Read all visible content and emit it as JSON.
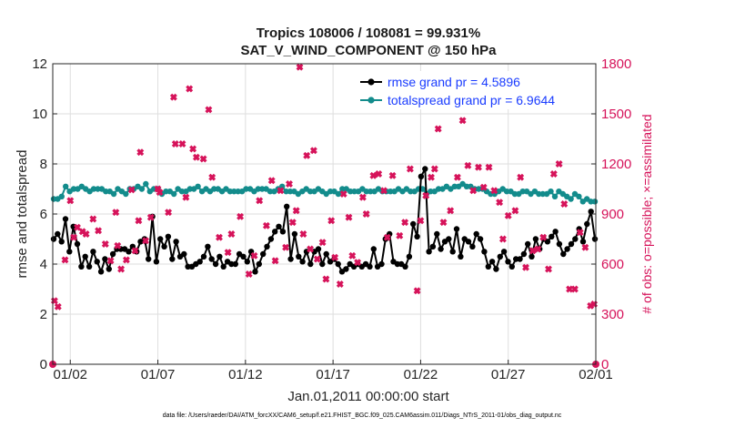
{
  "chart_data": {
    "type": "line",
    "title_line1": "Tropics 108006 / 108081 = 99.931%",
    "title_line2": "SAT_V_WIND_COMPONENT @ 150 hPa",
    "xlabel": "Jan.01,2011 00:00:00 start",
    "ylabel_left": "rmse and totalspread",
    "ylabel_right": "# of obs: o=possible; ×=assimilated",
    "footnote": "data file: /Users/raeder/DAI/ATM_forcXX/CAM6_setup/f.e21.FHIST_BGC.f09_025.CAM6assim.011/Diags_NTrS_2011-01/obs_diag_output.nc",
    "xlim": [
      0,
      31
    ],
    "ylim_left": [
      0,
      12
    ],
    "ylim_right": [
      0,
      1800
    ],
    "left_ticks": [
      0,
      2,
      4,
      6,
      8,
      10,
      12
    ],
    "left_tick_labels": [
      "0",
      "2",
      "4",
      "6",
      "8",
      "10",
      "12"
    ],
    "right_ticks": [
      0,
      300,
      600,
      900,
      1200,
      1500,
      1800
    ],
    "right_tick_labels": [
      "0",
      "300",
      "600",
      "900",
      "1200",
      "1500",
      "1800"
    ],
    "x_ticks": [
      1,
      6,
      11,
      16,
      21,
      26,
      31
    ],
    "x_tick_labels": [
      "01/02",
      "01/07",
      "01/12",
      "01/17",
      "01/22",
      "01/27",
      "02/01"
    ],
    "colors": {
      "rmse": "#000000",
      "spread": "#138c8c",
      "obs": "#d6135a",
      "legend_text": "#1a3cff"
    },
    "legend": [
      {
        "name": "rmse",
        "label": "rmse grand pr = 4.5896"
      },
      {
        "name": "spread",
        "label": "totalspread grand pr = 6.9644"
      }
    ],
    "rmse": [
      5.0,
      5.2,
      4.9,
      5.8,
      4.5,
      5.5,
      4.8,
      3.9,
      4.3,
      3.9,
      4.5,
      4.1,
      3.7,
      4.2,
      3.8,
      4.4,
      4.6,
      4.6,
      4.6,
      4.5,
      4.7,
      4.5,
      4.9,
      5.0,
      4.2,
      5.9,
      4.1,
      5.0,
      4.7,
      5.1,
      4.2,
      4.9,
      4.3,
      4.4,
      3.9,
      3.9,
      4.0,
      4.1,
      4.3,
      4.7,
      4.2,
      4.0,
      4.3,
      3.9,
      4.1,
      4.0,
      4.0,
      4.4,
      4.3,
      4.1,
      4.5,
      3.7,
      4.0,
      4.4,
      4.7,
      5.0,
      5.3,
      5.5,
      5.3,
      6.3,
      4.2,
      5.2,
      4.3,
      4.1,
      4.5,
      4.0,
      4.5,
      4.6,
      4.0,
      4.4,
      4.1,
      4.2,
      4.0,
      3.7,
      3.8,
      4.0,
      3.9,
      4.0,
      3.9,
      4.0,
      3.9,
      4.6,
      3.9,
      4.0,
      5.0,
      5.2,
      4.1,
      4.0,
      4.0,
      3.9,
      4.3,
      5.6,
      5.1,
      7.5,
      7.8,
      4.5,
      4.7,
      5.2,
      4.6,
      4.9,
      5.0,
      4.5,
      5.4,
      4.3,
      5.0,
      4.9,
      4.7,
      5.2,
      5.0,
      4.5,
      3.9,
      4.1,
      3.8,
      4.3,
      4.5,
      4.1,
      3.9,
      4.2,
      4.2,
      4.4,
      4.8,
      4.3,
      5.0,
      4.6,
      5.0,
      4.9,
      5.1,
      5.3,
      4.8,
      4.4,
      4.6,
      4.8,
      5.0,
      5.4,
      4.9,
      5.6,
      6.1,
      5.0
    ],
    "spread": [
      6.6,
      6.6,
      6.7,
      7.1,
      6.9,
      7.0,
      7.0,
      7.1,
      7.0,
      6.9,
      7.0,
      7.0,
      7.0,
      6.9,
      6.9,
      6.8,
      7.0,
      6.9,
      6.8,
      7.0,
      7.0,
      7.1,
      7.0,
      7.2,
      6.9,
      7.0,
      7.0,
      6.8,
      6.9,
      6.9,
      6.8,
      7.0,
      6.9,
      6.9,
      7.0,
      7.0,
      7.1,
      6.9,
      7.0,
      6.9,
      7.0,
      7.0,
      6.9,
      7.0,
      6.9,
      6.9,
      6.9,
      6.9,
      7.0,
      7.0,
      6.9,
      7.0,
      7.0,
      7.0,
      6.9,
      6.9,
      7.0,
      7.1,
      6.9,
      6.9,
      6.9,
      6.8,
      6.9,
      7.0,
      6.9,
      6.9,
      7.0,
      6.9,
      6.8,
      6.9,
      6.9,
      6.8,
      7.0,
      7.0,
      6.9,
      6.9,
      6.9,
      7.0,
      6.9,
      6.9,
      6.9,
      7.0,
      6.9,
      6.9,
      6.9,
      6.9,
      7.0,
      6.9,
      7.0,
      6.9,
      6.9,
      7.0,
      7.0,
      6.8,
      6.9,
      6.9,
      7.0,
      7.0,
      7.1,
      7.0,
      7.1,
      7.1,
      7.2,
      7.1,
      7.1,
      7.0,
      7.0,
      7.0,
      6.9,
      6.8,
      6.8,
      6.9,
      7.0,
      6.9,
      6.9,
      6.8,
      6.8,
      6.9,
      6.9,
      6.8,
      6.9,
      6.8,
      6.8,
      6.8,
      6.9,
      6.7,
      6.9,
      6.8,
      6.7,
      6.6,
      6.8,
      6.7,
      6.5,
      6.6,
      6.5,
      6.5
    ],
    "obs_assimilated": [
      {
        "t": 0.0,
        "v": 0
      },
      {
        "t": 0.1,
        "v": 380
      },
      {
        "t": 0.3,
        "v": 345
      },
      {
        "t": 0.7,
        "v": 625
      },
      {
        "t": 1.0,
        "v": 980
      },
      {
        "t": 1.2,
        "v": 760
      },
      {
        "t": 1.4,
        "v": 820
      },
      {
        "t": 1.7,
        "v": 795
      },
      {
        "t": 1.9,
        "v": 780
      },
      {
        "t": 2.3,
        "v": 870
      },
      {
        "t": 2.6,
        "v": 800
      },
      {
        "t": 3.0,
        "v": 720
      },
      {
        "t": 3.3,
        "v": 620
      },
      {
        "t": 3.6,
        "v": 910
      },
      {
        "t": 3.7,
        "v": 710
      },
      {
        "t": 3.9,
        "v": 570
      },
      {
        "t": 4.2,
        "v": 625
      },
      {
        "t": 4.5,
        "v": 1045
      },
      {
        "t": 4.7,
        "v": 680
      },
      {
        "t": 4.9,
        "v": 860
      },
      {
        "t": 5.0,
        "v": 1270
      },
      {
        "t": 5.3,
        "v": 740
      },
      {
        "t": 5.6,
        "v": 880
      },
      {
        "t": 6.0,
        "v": 1050
      },
      {
        "t": 6.1,
        "v": 1030
      },
      {
        "t": 6.6,
        "v": 910
      },
      {
        "t": 6.9,
        "v": 1600
      },
      {
        "t": 7.0,
        "v": 1320
      },
      {
        "t": 7.4,
        "v": 1320
      },
      {
        "t": 7.6,
        "v": 1000
      },
      {
        "t": 7.8,
        "v": 1650
      },
      {
        "t": 8.0,
        "v": 1290
      },
      {
        "t": 8.2,
        "v": 1240
      },
      {
        "t": 8.6,
        "v": 1230
      },
      {
        "t": 8.9,
        "v": 1525
      },
      {
        "t": 9.1,
        "v": 1120
      },
      {
        "t": 9.5,
        "v": 760
      },
      {
        "t": 10.0,
        "v": 670
      },
      {
        "t": 10.2,
        "v": 780
      },
      {
        "t": 10.7,
        "v": 885
      },
      {
        "t": 11.2,
        "v": 540
      },
      {
        "t": 11.5,
        "v": 650
      },
      {
        "t": 11.8,
        "v": 980
      },
      {
        "t": 12.2,
        "v": 830
      },
      {
        "t": 12.5,
        "v": 1100
      },
      {
        "t": 12.7,
        "v": 620
      },
      {
        "t": 13.0,
        "v": 1040
      },
      {
        "t": 13.3,
        "v": 700
      },
      {
        "t": 13.5,
        "v": 1080
      },
      {
        "t": 13.7,
        "v": 850
      },
      {
        "t": 13.9,
        "v": 920
      },
      {
        "t": 14.1,
        "v": 1780
      },
      {
        "t": 14.3,
        "v": 780
      },
      {
        "t": 14.5,
        "v": 1250
      },
      {
        "t": 14.7,
        "v": 690
      },
      {
        "t": 14.9,
        "v": 1280
      },
      {
        "t": 15.1,
        "v": 630
      },
      {
        "t": 15.4,
        "v": 730
      },
      {
        "t": 15.6,
        "v": 510
      },
      {
        "t": 15.9,
        "v": 860
      },
      {
        "t": 16.1,
        "v": 640
      },
      {
        "t": 16.4,
        "v": 480
      },
      {
        "t": 16.6,
        "v": 1020
      },
      {
        "t": 16.9,
        "v": 880
      },
      {
        "t": 17.1,
        "v": 650
      },
      {
        "t": 17.4,
        "v": 610
      },
      {
        "t": 17.7,
        "v": 1000
      },
      {
        "t": 17.9,
        "v": 900
      },
      {
        "t": 18.3,
        "v": 1130
      },
      {
        "t": 18.6,
        "v": 1140
      },
      {
        "t": 18.9,
        "v": 1040
      },
      {
        "t": 19.1,
        "v": 760
      },
      {
        "t": 19.4,
        "v": 1130
      },
      {
        "t": 19.8,
        "v": 770
      },
      {
        "t": 20.1,
        "v": 850
      },
      {
        "t": 20.4,
        "v": 1170
      },
      {
        "t": 20.8,
        "v": 440
      },
      {
        "t": 21.0,
        "v": 860
      },
      {
        "t": 21.3,
        "v": 1010
      },
      {
        "t": 21.6,
        "v": 1120
      },
      {
        "t": 21.8,
        "v": 1170
      },
      {
        "t": 22.0,
        "v": 1410
      },
      {
        "t": 22.3,
        "v": 850
      },
      {
        "t": 22.7,
        "v": 920
      },
      {
        "t": 23.1,
        "v": 1120
      },
      {
        "t": 23.4,
        "v": 1460
      },
      {
        "t": 23.7,
        "v": 1190
      },
      {
        "t": 24.0,
        "v": 1040
      },
      {
        "t": 24.3,
        "v": 1180
      },
      {
        "t": 24.6,
        "v": 1060
      },
      {
        "t": 24.9,
        "v": 1180
      },
      {
        "t": 25.2,
        "v": 1040
      },
      {
        "t": 25.5,
        "v": 970
      },
      {
        "t": 25.7,
        "v": 750
      },
      {
        "t": 26.0,
        "v": 890
      },
      {
        "t": 26.4,
        "v": 920
      },
      {
        "t": 26.7,
        "v": 1120
      },
      {
        "t": 27.0,
        "v": 580
      },
      {
        "t": 27.4,
        "v": 680
      },
      {
        "t": 27.7,
        "v": 690
      },
      {
        "t": 28.0,
        "v": 760
      },
      {
        "t": 28.3,
        "v": 570
      },
      {
        "t": 28.6,
        "v": 1140
      },
      {
        "t": 28.9,
        "v": 1200
      },
      {
        "t": 29.2,
        "v": 960
      },
      {
        "t": 29.5,
        "v": 450
      },
      {
        "t": 29.8,
        "v": 450
      },
      {
        "t": 30.1,
        "v": 790
      },
      {
        "t": 30.4,
        "v": 700
      },
      {
        "t": 30.7,
        "v": 350
      },
      {
        "t": 30.9,
        "v": 360
      },
      {
        "t": 31.0,
        "v": 0
      }
    ]
  }
}
